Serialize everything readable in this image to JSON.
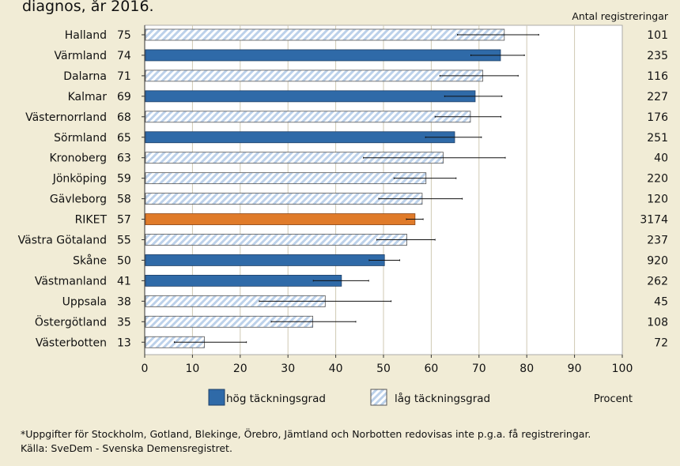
{
  "chart_data": {
    "type": "bar",
    "orientation": "horizontal",
    "title": "diagnos, år 2016.",
    "right_header": "Antal registreringar",
    "xlabel": "Procent",
    "xlim": [
      0,
      100
    ],
    "xticks": [
      0,
      10,
      20,
      30,
      40,
      50,
      60,
      70,
      80,
      90,
      100
    ],
    "grid": "vertical",
    "legend_position": "bottom",
    "legend": [
      {
        "key": "hog",
        "label": "hög täckningsgrad"
      },
      {
        "key": "lag",
        "label": "låg täckningsgrad"
      }
    ],
    "colors": {
      "hog": "#2f6aa8",
      "lag_stripe": "#bcd1ea",
      "riket": "#e07b2a",
      "plot_bg": "#ffffff",
      "page_bg": "#f1ecd6",
      "grid": "#cfc9b3"
    },
    "rows": [
      {
        "name": "Halland",
        "label": "75",
        "value": 75.3,
        "ci": [
          65.5,
          82.5
        ],
        "n": "101",
        "group": "lag"
      },
      {
        "name": "Värmland",
        "label": "74",
        "value": 74.5,
        "ci": [
          68.3,
          79.5
        ],
        "n": "235",
        "group": "hog"
      },
      {
        "name": "Dalarna",
        "label": "71",
        "value": 70.8,
        "ci": [
          61.8,
          78.2
        ],
        "n": "116",
        "group": "lag"
      },
      {
        "name": "Kalmar",
        "label": "69",
        "value": 69.2,
        "ci": [
          62.8,
          74.8
        ],
        "n": "227",
        "group": "hog"
      },
      {
        "name": "Västernorrland",
        "label": "68",
        "value": 68.2,
        "ci": [
          60.8,
          74.6
        ],
        "n": "176",
        "group": "lag"
      },
      {
        "name": "Sörmland",
        "label": "65",
        "value": 64.9,
        "ci": [
          58.8,
          70.5
        ],
        "n": "251",
        "group": "hog"
      },
      {
        "name": "Kronoberg",
        "label": "63",
        "value": 62.5,
        "ci": [
          45.8,
          75.5
        ],
        "n": "40",
        "group": "lag"
      },
      {
        "name": "Jönköping",
        "label": "59",
        "value": 58.9,
        "ci": [
          52.2,
          65.2
        ],
        "n": "220",
        "group": "lag"
      },
      {
        "name": "Gävleborg",
        "label": "58",
        "value": 58.1,
        "ci": [
          49.0,
          66.5
        ],
        "n": "120",
        "group": "lag"
      },
      {
        "name": "RIKET",
        "label": "57",
        "value": 56.6,
        "ci": [
          54.8,
          58.3
        ],
        "n": "3174",
        "group": "riket"
      },
      {
        "name": "Västra Götaland",
        "label": "55",
        "value": 54.9,
        "ci": [
          48.6,
          60.8
        ],
        "n": "237",
        "group": "lag"
      },
      {
        "name": "Skåne",
        "label": "50",
        "value": 50.2,
        "ci": [
          47.0,
          53.4
        ],
        "n": "920",
        "group": "hog"
      },
      {
        "name": "Västmanland",
        "label": "41",
        "value": 41.2,
        "ci": [
          35.3,
          46.9
        ],
        "n": "262",
        "group": "hog"
      },
      {
        "name": "Uppsala",
        "label": "38",
        "value": 37.8,
        "ci": [
          24.0,
          51.6
        ],
        "n": "45",
        "group": "lag"
      },
      {
        "name": "Östergötland",
        "label": "35",
        "value": 35.2,
        "ci": [
          26.5,
          44.2
        ],
        "n": "108",
        "group": "lag"
      },
      {
        "name": "Västerbotten",
        "label": "13",
        "value": 12.5,
        "ci": [
          6.2,
          21.3
        ],
        "n": "72",
        "group": "lag"
      }
    ]
  },
  "footnote": {
    "line1": "*Uppgifter för Stockholm, Gotland, Blekinge, Örebro, Jämtland och Norbotten redovisas inte p.g.a. få registreringar.",
    "line2": "Källa: SveDem - Svenska Demensregistret."
  }
}
